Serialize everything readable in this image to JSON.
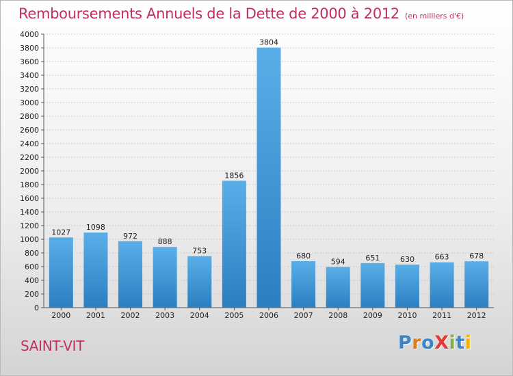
{
  "header": {
    "title": "Remboursements Annuels de la Dette de 2000 à 2012",
    "unit": "(en milliers d'€)"
  },
  "footer": {
    "city": "SAINT-VIT",
    "logo_letters": [
      {
        "char": "P",
        "color": "#3a86c8"
      },
      {
        "char": "r",
        "color": "#e07a1f"
      },
      {
        "char": "o",
        "color": "#3a86c8"
      },
      {
        "char": "X",
        "color": "#e53935"
      },
      {
        "char": "i",
        "color": "#7cb342"
      },
      {
        "char": "t",
        "color": "#3a86c8"
      },
      {
        "char": "i",
        "color": "#f4b400"
      }
    ]
  },
  "colors": {
    "title": "#c0305e",
    "bar_light": "#5aaee8",
    "bar_dark": "#2b7fc0",
    "grid": "#cccccc"
  },
  "chart_data": {
    "type": "bar",
    "categories": [
      "2000",
      "2001",
      "2002",
      "2003",
      "2004",
      "2005",
      "2006",
      "2007",
      "2008",
      "2009",
      "2010",
      "2011",
      "2012"
    ],
    "values": [
      1027,
      1098,
      972,
      888,
      753,
      1856,
      3804,
      680,
      594,
      651,
      630,
      663,
      678
    ],
    "ylim": [
      0,
      4000
    ],
    "ytick_step": 200,
    "grid": "horizontal dotted",
    "legend": "none",
    "data_labels": true
  }
}
